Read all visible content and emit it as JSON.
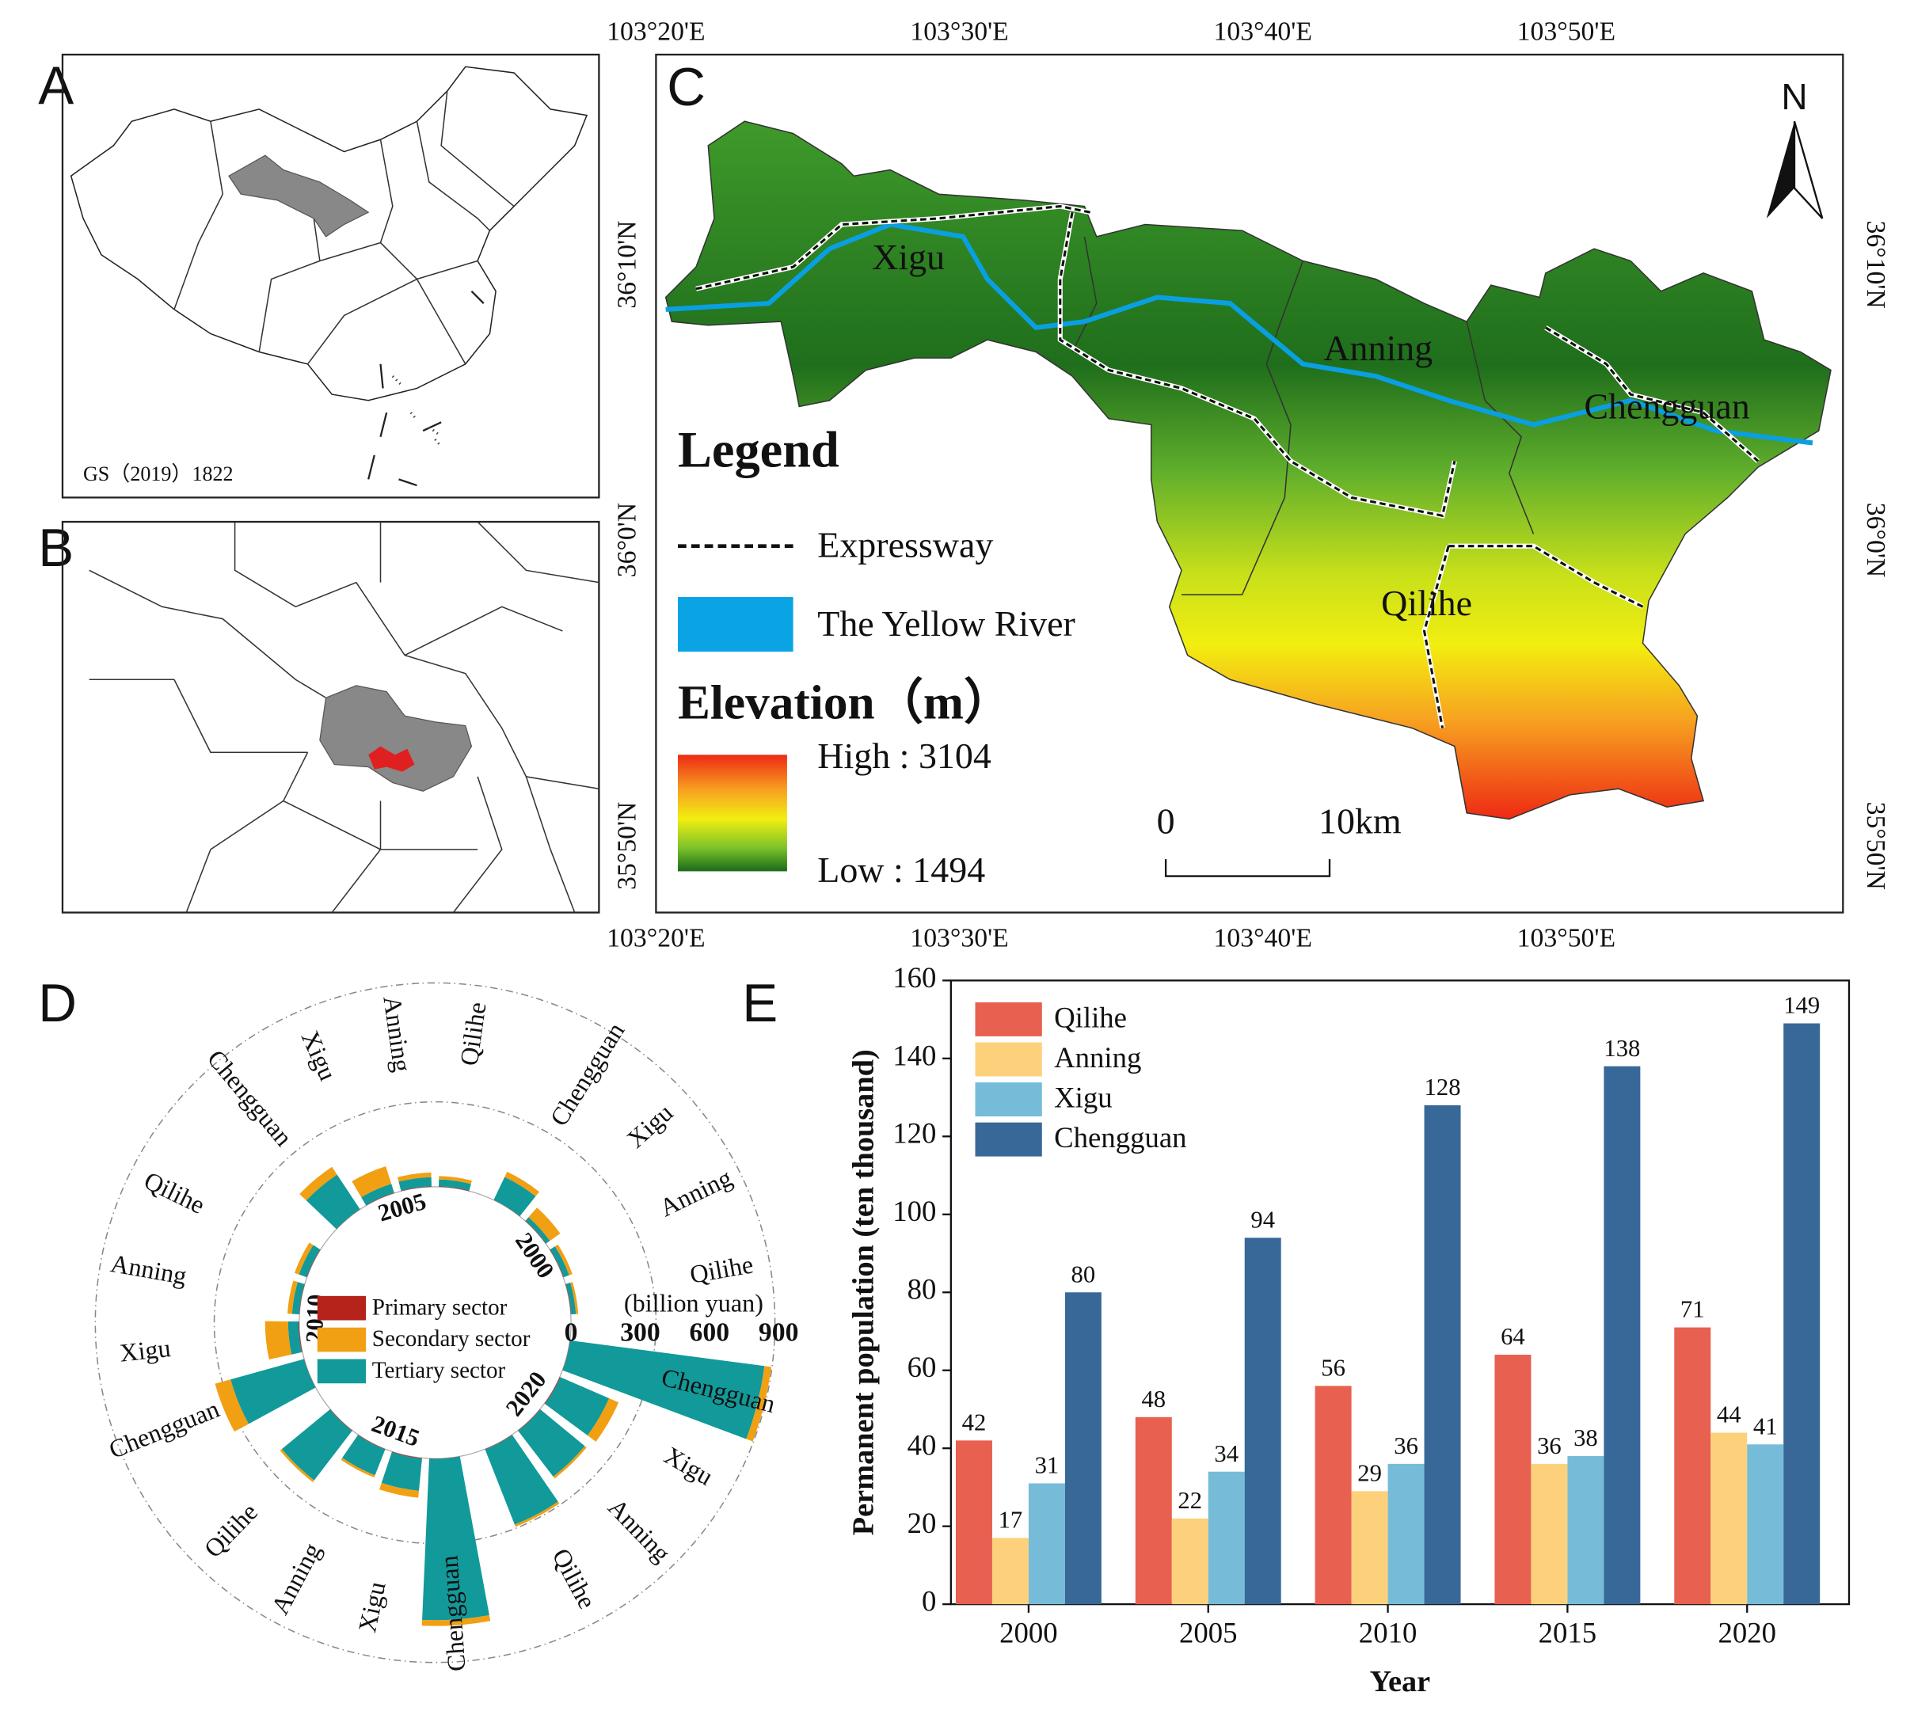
{
  "panel_labels": [
    "A",
    "B",
    "C",
    "D",
    "E"
  ],
  "map_a": {
    "note": "GS（2019）1822"
  },
  "map_c": {
    "lon_ticks": [
      "103°20'E",
      "103°30'E",
      "103°40'E",
      "103°50'E"
    ],
    "lat_ticks": [
      "36°10'N",
      "36°0'N",
      "35°50'N"
    ],
    "north": "N",
    "places": [
      "Xigu",
      "Anning",
      "Chengguan",
      "Qilihe"
    ],
    "legend": {
      "title": "Legend",
      "items": [
        "Expressway",
        "The Yellow River"
      ],
      "elevation_title": "Elevation（m）",
      "high": "High : 3104",
      "low": "Low : 1494"
    },
    "scale_bar": [
      "0",
      "10km"
    ]
  },
  "chart_data": [
    {
      "type": "radial_bar",
      "unit_label": "(billion yuan)",
      "groups": [
        "2000",
        "2005",
        "2010",
        "2015",
        "2020"
      ],
      "categories": [
        "Chengguan",
        "Xigu",
        "Anning",
        "Qilihe"
      ],
      "rlim": [
        0,
        900
      ],
      "rticks": [
        0,
        300,
        600,
        900
      ],
      "series": [
        {
          "name": "Primary sector",
          "color": "#b5231b",
          "values": [
            [
              1,
              2,
              2,
              2
            ],
            [
              1,
              2,
              2,
              2
            ],
            [
              1,
              3,
              2,
              2
            ],
            [
              1,
              3,
              2,
              2
            ],
            [
              1,
              3,
              2,
              2
            ]
          ]
        },
        {
          "name": "Secondary sector",
          "color": "#f0a012",
          "values": [
            [
              25,
              55,
              15,
              10
            ],
            [
              40,
              80,
              20,
              15
            ],
            [
              70,
              100,
              20,
              20
            ],
            [
              25,
              30,
              10,
              10
            ],
            [
              30,
              45,
              10,
              10
            ]
          ]
        },
        {
          "name": "Tertiary sector",
          "color": "#12999a",
          "values": [
            [
              110,
              20,
              25,
              20
            ],
            [
              180,
              40,
              40,
              30
            ],
            [
              330,
              45,
              30,
              35
            ],
            [
              700,
              140,
              120,
              270
            ],
            [
              850,
              230,
              250,
              350
            ]
          ]
        }
      ]
    },
    {
      "type": "bar",
      "categories": [
        "2000",
        "2005",
        "2010",
        "2015",
        "2020"
      ],
      "xlabel": "Year",
      "ylabel": "Permanent population (ten thousand)",
      "ylim": [
        0,
        160
      ],
      "yticks": [
        0,
        20,
        40,
        60,
        80,
        100,
        120,
        140,
        160
      ],
      "legend": "upper left",
      "series": [
        {
          "name": "Qilihe",
          "color": "#e8604f",
          "values": [
            42,
            48,
            56,
            64,
            71
          ]
        },
        {
          "name": "Anning",
          "color": "#fdd17c",
          "values": [
            17,
            22,
            29,
            36,
            44
          ]
        },
        {
          "name": "Xigu",
          "color": "#76bcd8",
          "values": [
            31,
            34,
            36,
            38,
            41
          ]
        },
        {
          "name": "Chengguan",
          "color": "#386898",
          "values": [
            80,
            94,
            128,
            138,
            149
          ]
        }
      ]
    }
  ]
}
